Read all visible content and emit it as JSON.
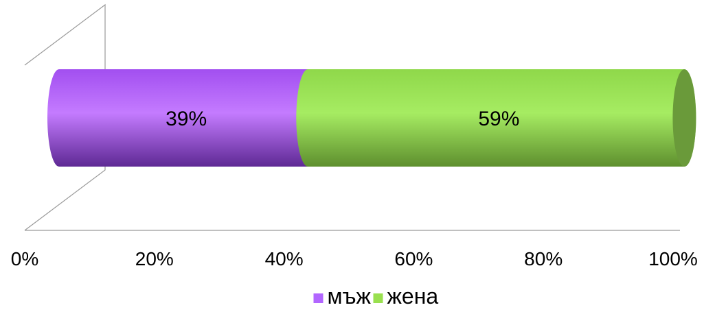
{
  "chart_data": {
    "type": "bar",
    "orientation": "horizontal",
    "stacked": true,
    "percent_stacked": true,
    "three_d": true,
    "categories": [
      ""
    ],
    "series": [
      {
        "name": "мъж",
        "values": [
          39
        ],
        "label": "39%",
        "color": "#b266ff"
      },
      {
        "name": "жена",
        "values": [
          59
        ],
        "label": "59%",
        "color": "#99e04f"
      }
    ],
    "x_ticks": [
      "0%",
      "20%",
      "40%",
      "60%",
      "80%",
      "100%"
    ],
    "xlim": [
      0,
      100
    ],
    "grid": false,
    "legend_position": "bottom"
  }
}
